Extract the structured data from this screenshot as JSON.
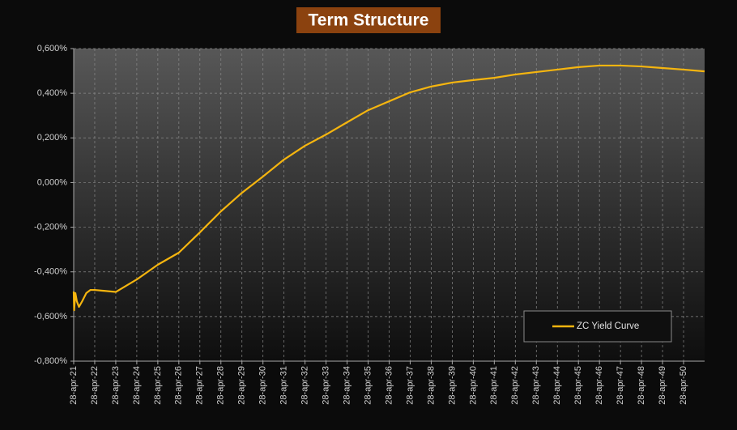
{
  "chart_data": {
    "type": "line",
    "title": "Term Structure",
    "x": [
      2021.0,
      2021.02,
      2021.08,
      2021.15,
      2021.25,
      2021.4,
      2021.6,
      2021.8,
      2022,
      2023,
      2024,
      2025,
      2026,
      2027,
      2028,
      2029,
      2030,
      2031,
      2032,
      2033,
      2034,
      2035,
      2036,
      2037,
      2038,
      2039,
      2040,
      2041,
      2042,
      2043,
      2044,
      2045,
      2046,
      2047,
      2048,
      2049,
      2050,
      2051
    ],
    "series": [
      {
        "name": "ZC Yield Curve",
        "color": "#f5b50f",
        "values": [
          -0.488,
          -0.572,
          -0.495,
          -0.532,
          -0.557,
          -0.532,
          -0.495,
          -0.481,
          -0.481,
          -0.49,
          -0.434,
          -0.368,
          -0.314,
          -0.223,
          -0.129,
          -0.046,
          0.027,
          0.103,
          0.165,
          0.215,
          0.27,
          0.324,
          0.364,
          0.404,
          0.43,
          0.448,
          0.459,
          0.469,
          0.484,
          0.495,
          0.506,
          0.517,
          0.524,
          0.524,
          0.52,
          0.513,
          0.506,
          0.498
        ]
      }
    ],
    "xlim": [
      2021,
      2051
    ],
    "xticks": [
      {
        "value": 2021,
        "label": "28-apr-21"
      },
      {
        "value": 2022,
        "label": "28-apr-22"
      },
      {
        "value": 2023,
        "label": "28-apr-23"
      },
      {
        "value": 2024,
        "label": "28-apr-24"
      },
      {
        "value": 2025,
        "label": "28-apr-25"
      },
      {
        "value": 2026,
        "label": "28-apr-26"
      },
      {
        "value": 2027,
        "label": "28-apr-27"
      },
      {
        "value": 2028,
        "label": "28-apr-28"
      },
      {
        "value": 2029,
        "label": "28-apr-29"
      },
      {
        "value": 2030,
        "label": "28-apr-30"
      },
      {
        "value": 2031,
        "label": "28-apr-31"
      },
      {
        "value": 2032,
        "label": "28-apr-32"
      },
      {
        "value": 2033,
        "label": "28-apr-33"
      },
      {
        "value": 2034,
        "label": "28-apr-34"
      },
      {
        "value": 2035,
        "label": "28-apr-35"
      },
      {
        "value": 2036,
        "label": "28-apr-36"
      },
      {
        "value": 2037,
        "label": "28-apr-37"
      },
      {
        "value": 2038,
        "label": "28-apr-38"
      },
      {
        "value": 2039,
        "label": "28-apr-39"
      },
      {
        "value": 2040,
        "label": "28-apr-40"
      },
      {
        "value": 2041,
        "label": "28-apr-41"
      },
      {
        "value": 2042,
        "label": "28-apr-42"
      },
      {
        "value": 2043,
        "label": "28-apr-43"
      },
      {
        "value": 2044,
        "label": "28-apr-44"
      },
      {
        "value": 2045,
        "label": "28-apr-45"
      },
      {
        "value": 2046,
        "label": "28-apr-46"
      },
      {
        "value": 2047,
        "label": "28-apr-47"
      },
      {
        "value": 2048,
        "label": "28-apr-48"
      },
      {
        "value": 2049,
        "label": "28-apr-49"
      },
      {
        "value": 2050,
        "label": "28-apr-50"
      }
    ],
    "ylim": [
      -0.8,
      0.6
    ],
    "yticks": [
      {
        "value": 0.6,
        "label": "0,600%"
      },
      {
        "value": 0.4,
        "label": "0,400%"
      },
      {
        "value": 0.2,
        "label": "0,200%"
      },
      {
        "value": 0,
        "label": "0,000%"
      },
      {
        "value": -0.2,
        "label": "-0,200%"
      },
      {
        "value": -0.4,
        "label": "-0,400%"
      },
      {
        "value": -0.6,
        "label": "-0,600%"
      },
      {
        "value": -0.8,
        "label": "-0,800%"
      }
    ],
    "grid": true,
    "legend": "lower right"
  }
}
